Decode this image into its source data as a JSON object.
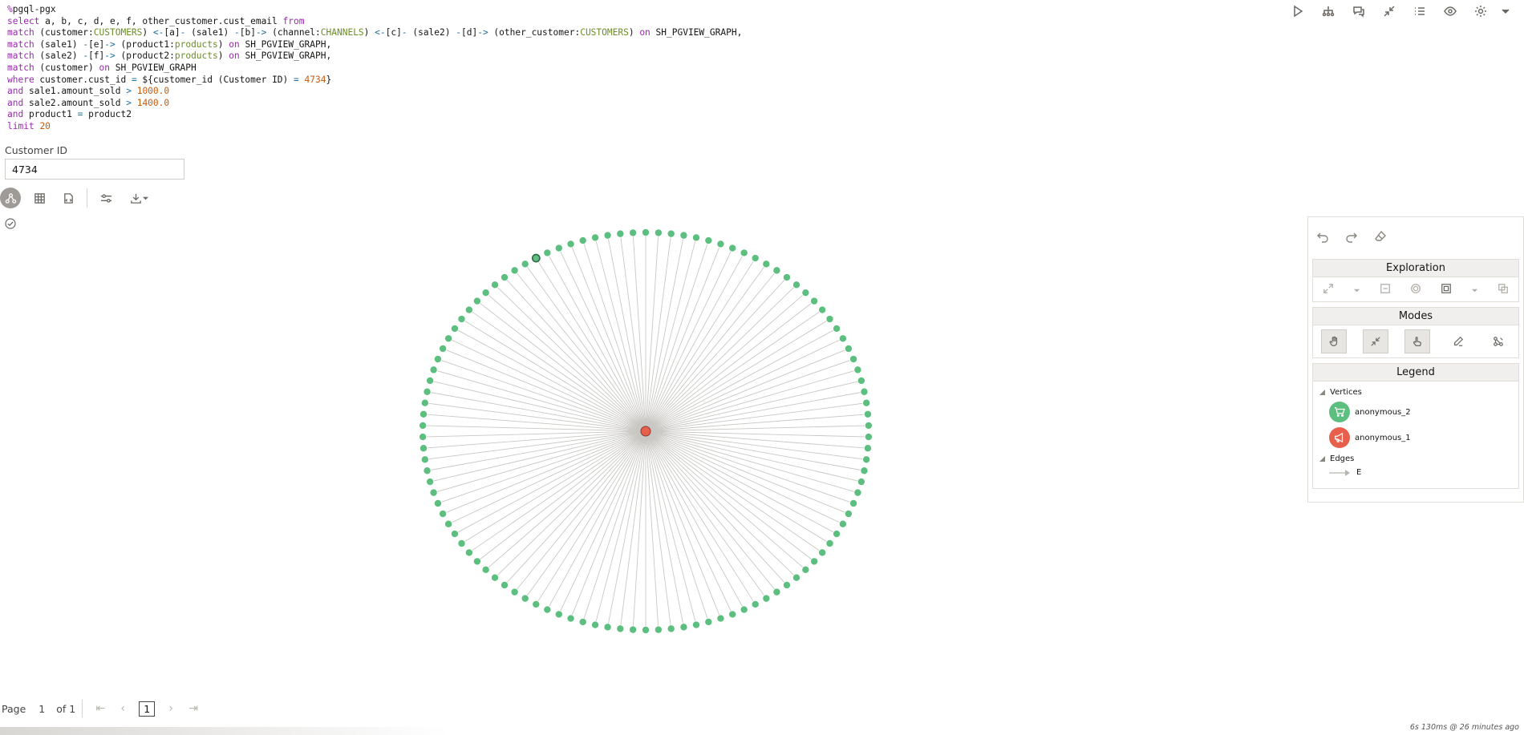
{
  "code": {
    "magic": "%pgql-pgx",
    "lines": [
      [
        [
          "kw",
          "select"
        ],
        [
          "t",
          " a, b, c, d, e, f, other_customer.cust_email "
        ],
        [
          "kw",
          "from"
        ]
      ],
      [
        [
          "kw",
          "match"
        ],
        [
          "t",
          " (customer:"
        ],
        [
          "lbl",
          "CUSTOMERS"
        ],
        [
          "t",
          ") "
        ],
        [
          "op",
          "<-"
        ],
        [
          "t",
          "[a]"
        ],
        [
          "op",
          "-"
        ],
        [
          "t",
          " (sale1) "
        ],
        [
          "op",
          "-"
        ],
        [
          "t",
          "[b]"
        ],
        [
          "op",
          "->"
        ],
        [
          "t",
          " (channel:"
        ],
        [
          "lbl",
          "CHANNELS"
        ],
        [
          "t",
          ") "
        ],
        [
          "op",
          "<-"
        ],
        [
          "t",
          "[c]"
        ],
        [
          "op",
          "-"
        ],
        [
          "t",
          " (sale2) "
        ],
        [
          "op",
          "-"
        ],
        [
          "t",
          "[d]"
        ],
        [
          "op",
          "->"
        ],
        [
          "t",
          " (other_customer:"
        ],
        [
          "lbl",
          "CUSTOMERS"
        ],
        [
          "t",
          ") "
        ],
        [
          "kw",
          "on"
        ],
        [
          "t",
          " SH_PGVIEW_GRAPH,"
        ]
      ],
      [
        [
          "kw",
          "match"
        ],
        [
          "t",
          " (sale1) "
        ],
        [
          "op",
          "-"
        ],
        [
          "t",
          "[e]"
        ],
        [
          "op",
          "->"
        ],
        [
          "t",
          " (product1:"
        ],
        [
          "lbl",
          "products"
        ],
        [
          "t",
          ") "
        ],
        [
          "kw",
          "on"
        ],
        [
          "t",
          " SH_PGVIEW_GRAPH,"
        ]
      ],
      [
        [
          "kw",
          "match"
        ],
        [
          "t",
          " (sale2) "
        ],
        [
          "op",
          "-"
        ],
        [
          "t",
          "[f]"
        ],
        [
          "op",
          "->"
        ],
        [
          "t",
          " (product2:"
        ],
        [
          "lbl",
          "products"
        ],
        [
          "t",
          ") "
        ],
        [
          "kw",
          "on"
        ],
        [
          "t",
          " SH_PGVIEW_GRAPH,"
        ]
      ],
      [
        [
          "kw",
          "match"
        ],
        [
          "t",
          " (customer) "
        ],
        [
          "kw",
          "on"
        ],
        [
          "t",
          " SH_PGVIEW_GRAPH"
        ]
      ],
      [
        [
          "kw",
          "where"
        ],
        [
          "t",
          " customer.cust_id "
        ],
        [
          "op",
          "="
        ],
        [
          "t",
          " ${customer_id (Customer ID) "
        ],
        [
          "op",
          "="
        ],
        [
          "t",
          " "
        ],
        [
          "num",
          "4734"
        ],
        [
          "t",
          "}"
        ]
      ],
      [
        [
          "kw",
          "and"
        ],
        [
          "t",
          " sale1.amount_sold "
        ],
        [
          "op",
          ">"
        ],
        [
          "t",
          " "
        ],
        [
          "num",
          "1000.0"
        ]
      ],
      [
        [
          "kw",
          "and"
        ],
        [
          "t",
          " sale2.amount_sold "
        ],
        [
          "op",
          ">"
        ],
        [
          "t",
          " "
        ],
        [
          "num",
          "1400.0"
        ]
      ],
      [
        [
          "kw",
          "and"
        ],
        [
          "t",
          " product1 "
        ],
        [
          "op",
          "="
        ],
        [
          "t",
          " product2"
        ]
      ],
      [
        [
          "kw",
          "limit"
        ],
        [
          "t",
          " "
        ],
        [
          "num",
          "20"
        ]
      ]
    ]
  },
  "param": {
    "label": "Customer ID",
    "value": "4734"
  },
  "toolbar_icons": [
    "play-icon",
    "hierarchy-icon",
    "comments-icon",
    "collapse-icon",
    "list-icon",
    "eye-icon",
    "gear-icon"
  ],
  "result_toolbar": [
    "graph-view-icon",
    "table-view-icon",
    "code-view-icon",
    "settings-sliders-icon",
    "download-icon"
  ],
  "graph": {
    "center_color": "#e8604c",
    "node_color": "#5cbf7f",
    "node_count": 110,
    "highlight_index": 101
  },
  "side_panel": {
    "exploration": "Exploration",
    "modes": "Modes",
    "legend": "Legend",
    "vertices_label": "Vertices",
    "edges_label": "Edges",
    "vertices": [
      {
        "name": "anonymous_2",
        "color": "#5cbf7f",
        "icon": "cart-icon"
      },
      {
        "name": "anonymous_1",
        "color": "#e8604c",
        "icon": "megaphone-icon"
      }
    ],
    "edges": [
      {
        "name": "E"
      }
    ]
  },
  "pager": {
    "page_label": "Page",
    "page_value": "1",
    "of_label": "of 1",
    "current": "1"
  },
  "timing": "6s 130ms @ 26 minutes ago"
}
